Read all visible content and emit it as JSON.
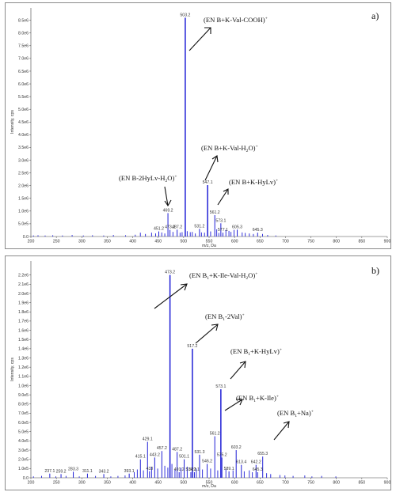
{
  "chart_data": [
    {
      "type": "bar",
      "panel_label": "a)",
      "ylabel": "Intensity, cps",
      "xlabel": "m/z, Da",
      "xlim": [
        200,
        900
      ],
      "ylim": [
        0,
        8800000
      ],
      "xticks": [
        "200",
        "250",
        "300",
        "350",
        "400",
        "450",
        "500",
        "550",
        "600",
        "650",
        "700",
        "750",
        "800",
        "850",
        "900"
      ],
      "yticks": [
        {
          "value": 0,
          "label": "0.0"
        },
        {
          "value": 500000,
          "label": "5.0e5"
        },
        {
          "value": 1000000,
          "label": "1.0e6"
        },
        {
          "value": 1500000,
          "label": "1.5e6"
        },
        {
          "value": 2000000,
          "label": "2.0e6"
        },
        {
          "value": 2500000,
          "label": "2.5e6"
        },
        {
          "value": 3000000,
          "label": "3.0e6"
        },
        {
          "value": 3500000,
          "label": "3.5e6"
        },
        {
          "value": 4000000,
          "label": "4.0e6"
        },
        {
          "value": 4500000,
          "label": "4.5e6"
        },
        {
          "value": 5000000,
          "label": "5.0e6"
        },
        {
          "value": 5500000,
          "label": "5.5e6"
        },
        {
          "value": 6000000,
          "label": "6.0e6"
        },
        {
          "value": 6500000,
          "label": "6.5e6"
        },
        {
          "value": 7000000,
          "label": "7.0e6"
        },
        {
          "value": 7500000,
          "label": "7.5e6"
        },
        {
          "value": 8000000,
          "label": "8.0e6"
        },
        {
          "value": 8500000,
          "label": "8.5e6"
        }
      ],
      "peaks": [
        {
          "mz": 503.2,
          "intensity": 8600000,
          "label": "503.2"
        },
        {
          "mz": 547.1,
          "intensity": 2020000,
          "label": "547.1"
        },
        {
          "mz": 561.2,
          "intensity": 840000,
          "label": "561.2"
        },
        {
          "mz": 469.2,
          "intensity": 920000,
          "label": "469.2"
        },
        {
          "mz": 573.1,
          "intensity": 520000,
          "label": "573.1"
        },
        {
          "mz": 451.2,
          "intensity": 200000,
          "label": "451.2"
        },
        {
          "mz": 473.2,
          "intensity": 260000,
          "label": "473.2"
        },
        {
          "mz": 487.2,
          "intensity": 270000,
          "label": "487.2"
        },
        {
          "mz": 531.2,
          "intensity": 300000,
          "label": "531.2"
        },
        {
          "mz": 577.1,
          "intensity": 150000,
          "label": "577.1"
        },
        {
          "mz": 605.3,
          "intensity": 270000,
          "label": "605.3"
        },
        {
          "mz": 645.3,
          "intensity": 150000,
          "label": "645.3"
        }
      ],
      "minor_peaks": [
        {
          "mz": 205,
          "intensity": 40000
        },
        {
          "mz": 214,
          "intensity": 50000
        },
        {
          "mz": 228,
          "intensity": 40000
        },
        {
          "mz": 243,
          "intensity": 50000
        },
        {
          "mz": 262,
          "intensity": 40000
        },
        {
          "mz": 281,
          "intensity": 60000
        },
        {
          "mz": 303,
          "intensity": 40000
        },
        {
          "mz": 321,
          "intensity": 50000
        },
        {
          "mz": 343,
          "intensity": 40000
        },
        {
          "mz": 362,
          "intensity": 60000
        },
        {
          "mz": 386,
          "intensity": 50000
        },
        {
          "mz": 405,
          "intensity": 70000
        },
        {
          "mz": 415,
          "intensity": 150000
        },
        {
          "mz": 425,
          "intensity": 100000
        },
        {
          "mz": 437,
          "intensity": 150000
        },
        {
          "mz": 445,
          "intensity": 120000
        },
        {
          "mz": 457,
          "intensity": 160000
        },
        {
          "mz": 463,
          "intensity": 120000
        },
        {
          "mz": 479,
          "intensity": 180000
        },
        {
          "mz": 493,
          "intensity": 150000
        },
        {
          "mz": 497,
          "intensity": 170000
        },
        {
          "mz": 507,
          "intensity": 210000
        },
        {
          "mz": 513,
          "intensity": 170000
        },
        {
          "mz": 517,
          "intensity": 180000
        },
        {
          "mz": 523,
          "intensity": 120000
        },
        {
          "mz": 535,
          "intensity": 160000
        },
        {
          "mz": 541,
          "intensity": 150000
        },
        {
          "mz": 553,
          "intensity": 200000
        },
        {
          "mz": 565,
          "intensity": 280000
        },
        {
          "mz": 569,
          "intensity": 140000
        },
        {
          "mz": 583,
          "intensity": 260000
        },
        {
          "mz": 589,
          "intensity": 220000
        },
        {
          "mz": 593,
          "intensity": 180000
        },
        {
          "mz": 599,
          "intensity": 260000
        },
        {
          "mz": 615,
          "intensity": 160000
        },
        {
          "mz": 621,
          "intensity": 140000
        },
        {
          "mz": 629,
          "intensity": 120000
        },
        {
          "mz": 637,
          "intensity": 100000
        },
        {
          "mz": 655,
          "intensity": 100000
        },
        {
          "mz": 665,
          "intensity": 60000
        },
        {
          "mz": 681,
          "intensity": 40000
        }
      ],
      "annotations": [
        {
          "base": "(EN B+K-Val-COOH)",
          "sup": "+",
          "sub": "",
          "tail": ""
        },
        {
          "base": "(EN B+K-Val-H",
          "sub": "2",
          "tail": "O)",
          "sup": "+"
        },
        {
          "base": "(EN B-2HyLv-H",
          "sub": "2",
          "tail": "O)",
          "sup": "+"
        },
        {
          "base": "(EN B+K-HyLv)",
          "sup": "+",
          "sub": "",
          "tail": ""
        }
      ]
    },
    {
      "type": "bar",
      "panel_label": "b)",
      "ylabel": "Intensity, cps",
      "xlabel": "m/z, Da",
      "xlim": [
        200,
        900
      ],
      "ylim": [
        0,
        2300000
      ],
      "xticks": [
        "200",
        "250",
        "300",
        "350",
        "400",
        "450",
        "500",
        "550",
        "600",
        "650",
        "700",
        "750",
        "800",
        "850",
        "900"
      ],
      "yticks": [
        {
          "value": 0,
          "label": "0.0"
        },
        {
          "value": 100000,
          "label": "1.0e5"
        },
        {
          "value": 200000,
          "label": "2.0e5"
        },
        {
          "value": 300000,
          "label": "3.0e5"
        },
        {
          "value": 400000,
          "label": "4.0e5"
        },
        {
          "value": 500000,
          "label": "5.0e5"
        },
        {
          "value": 600000,
          "label": "6.0e5"
        },
        {
          "value": 700000,
          "label": "7.0e5"
        },
        {
          "value": 800000,
          "label": "8.0e5"
        },
        {
          "value": 900000,
          "label": "9.0e5"
        },
        {
          "value": 1000000,
          "label": "1.0e6"
        },
        {
          "value": 1100000,
          "label": "1.1e6"
        },
        {
          "value": 1200000,
          "label": "1.2e6"
        },
        {
          "value": 1300000,
          "label": "1.3e6"
        },
        {
          "value": 1400000,
          "label": "1.4e6"
        },
        {
          "value": 1500000,
          "label": "1.5e6"
        },
        {
          "value": 1600000,
          "label": "1.6e6"
        },
        {
          "value": 1700000,
          "label": "1.7e6"
        },
        {
          "value": 1800000,
          "label": "1.8e6"
        },
        {
          "value": 1900000,
          "label": "1.9e6"
        },
        {
          "value": 2000000,
          "label": "2.0e6"
        },
        {
          "value": 2100000,
          "label": "2.1e6"
        },
        {
          "value": 2200000,
          "label": "2.2e6"
        }
      ],
      "peaks": [
        {
          "mz": 473.2,
          "intensity": 2200000,
          "label": "473.2"
        },
        {
          "mz": 517.2,
          "intensity": 1400000,
          "label": "517.2"
        },
        {
          "mz": 573.1,
          "intensity": 960000,
          "label": "573.1"
        },
        {
          "mz": 561.2,
          "intensity": 450000,
          "label": "561.2"
        },
        {
          "mz": 429.1,
          "intensity": 390000,
          "label": "429.1"
        },
        {
          "mz": 603.2,
          "intensity": 300000,
          "label": "603.2"
        },
        {
          "mz": 457.2,
          "intensity": 290000,
          "label": "457.2"
        },
        {
          "mz": 487.2,
          "intensity": 280000,
          "label": "487.2"
        },
        {
          "mz": 531.3,
          "intensity": 250000,
          "label": "531.3"
        },
        {
          "mz": 443.2,
          "intensity": 220000,
          "label": "443.2"
        },
        {
          "mz": 415.1,
          "intensity": 200000,
          "label": "415.1"
        },
        {
          "mz": 575.2,
          "intensity": 220000,
          "label": "575.2"
        },
        {
          "mz": 655.3,
          "intensity": 230000,
          "label": "655.3"
        },
        {
          "mz": 501.1,
          "intensity": 200000,
          "label": "501.1"
        },
        {
          "mz": 546.2,
          "intensity": 150000,
          "label": "546.2"
        },
        {
          "mz": 613.4,
          "intensity": 140000,
          "label": "613.4"
        },
        {
          "mz": 642.2,
          "intensity": 140000,
          "label": "642.2"
        },
        {
          "mz": 433,
          "intensity": 70000,
          "label": "433"
        },
        {
          "mz": 589.1,
          "intensity": 70000,
          "label": "589.1"
        },
        {
          "mz": 645.3,
          "intensity": 60000,
          "label": "645.3"
        },
        {
          "mz": 491.2,
          "intensity": 60000,
          "label": "491.2"
        },
        {
          "mz": 514.2,
          "intensity": 60000,
          "label": "514.2"
        },
        {
          "mz": 521.1,
          "intensity": 60000,
          "label": "521.1"
        },
        {
          "mz": 393.1,
          "intensity": 45000,
          "label": "393.1"
        },
        {
          "mz": 237.1,
          "intensity": 45000,
          "label": "237.1"
        },
        {
          "mz": 259.2,
          "intensity": 40000,
          "label": "259.2"
        },
        {
          "mz": 283.3,
          "intensity": 65000,
          "label": "283.3"
        },
        {
          "mz": 311.1,
          "intensity": 45000,
          "label": "311.1"
        },
        {
          "mz": 343.2,
          "intensity": 40000,
          "label": "343.2"
        }
      ],
      "minor_peaks": [
        {
          "mz": 205,
          "intensity": 15000
        },
        {
          "mz": 221,
          "intensity": 20000
        },
        {
          "mz": 249,
          "intensity": 15000
        },
        {
          "mz": 269,
          "intensity": 20000
        },
        {
          "mz": 295,
          "intensity": 15000
        },
        {
          "mz": 327,
          "intensity": 20000
        },
        {
          "mz": 357,
          "intensity": 15000
        },
        {
          "mz": 371,
          "intensity": 20000
        },
        {
          "mz": 385,
          "intensity": 25000
        },
        {
          "mz": 403,
          "intensity": 60000
        },
        {
          "mz": 409,
          "intensity": 90000
        },
        {
          "mz": 421,
          "intensity": 80000
        },
        {
          "mz": 437,
          "intensity": 120000
        },
        {
          "mz": 449,
          "intensity": 100000
        },
        {
          "mz": 463,
          "intensity": 130000
        },
        {
          "mz": 469,
          "intensity": 110000
        },
        {
          "mz": 477,
          "intensity": 150000
        },
        {
          "mz": 483,
          "intensity": 90000
        },
        {
          "mz": 495,
          "intensity": 110000
        },
        {
          "mz": 507,
          "intensity": 120000
        },
        {
          "mz": 525,
          "intensity": 100000
        },
        {
          "mz": 537,
          "intensity": 90000
        },
        {
          "mz": 553,
          "intensity": 100000
        },
        {
          "mz": 567,
          "intensity": 80000
        },
        {
          "mz": 583,
          "intensity": 90000
        },
        {
          "mz": 597,
          "intensity": 80000
        },
        {
          "mz": 619,
          "intensity": 70000
        },
        {
          "mz": 629,
          "intensity": 80000
        },
        {
          "mz": 635,
          "intensity": 60000
        },
        {
          "mz": 663,
          "intensity": 50000
        },
        {
          "mz": 671,
          "intensity": 40000
        },
        {
          "mz": 689,
          "intensity": 30000
        },
        {
          "mz": 699,
          "intensity": 25000
        },
        {
          "mz": 715,
          "intensity": 20000
        },
        {
          "mz": 738,
          "intensity": 25000
        },
        {
          "mz": 752,
          "intensity": 15000
        },
        {
          "mz": 771,
          "intensity": 20000
        },
        {
          "mz": 799,
          "intensity": 15000
        }
      ],
      "annotations": [
        {
          "base": "(EN B",
          "sub": "1",
          "tail": "+K-Ile-Val-H",
          "sub2": "2",
          "tail2": "O)",
          "sup": "+"
        },
        {
          "base": "(EN B",
          "sub": "1",
          "tail": "-2Val)",
          "sup": "+"
        },
        {
          "base": "(EN B",
          "sub": "1",
          "tail": "+K-HyLv)",
          "sup": "+"
        },
        {
          "base": "(EN B",
          "sub": "1",
          "tail": "+K-Ile)",
          "sup": "+"
        },
        {
          "base": "(EN B",
          "sub": "1",
          "tail": "+Na)",
          "sup": "+"
        }
      ]
    }
  ]
}
